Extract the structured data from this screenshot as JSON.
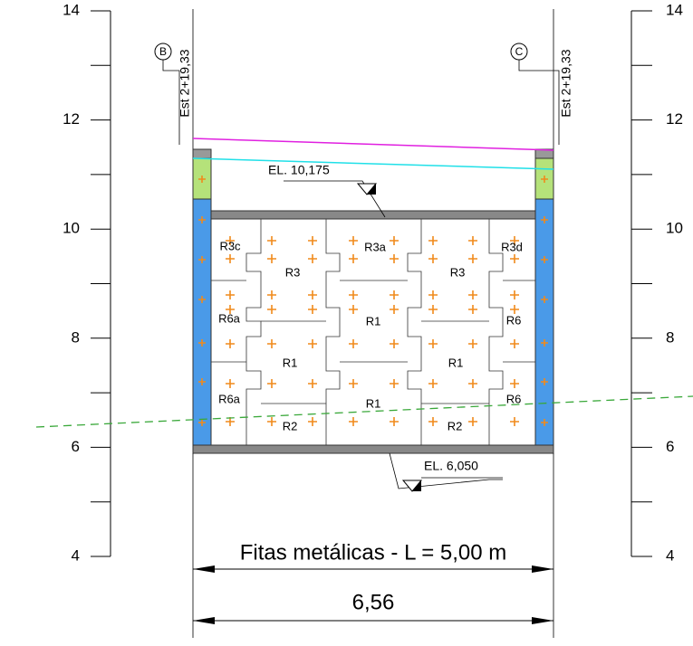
{
  "left_scale": {
    "ticks": [
      14,
      12,
      10,
      8,
      6,
      4
    ]
  },
  "right_scale": {
    "ticks": [
      14,
      12,
      10,
      8,
      6,
      4
    ]
  },
  "markers": [
    {
      "letter": "B",
      "station": "Est 2+19,33"
    },
    {
      "letter": "C",
      "station": "Est 2+19,33"
    }
  ],
  "elevations": [
    "EL. 10,175",
    "EL. 6,050"
  ],
  "blocks": [
    "R3c",
    "R3",
    "R3a",
    "R3",
    "R3d",
    "R6a",
    "R1",
    "R6",
    "R1",
    "R1",
    "R6a",
    "R1",
    "R6",
    "R2",
    "R2"
  ],
  "dimensions": {
    "strip_label": "Fitas metálicas - L = 5,00 m",
    "width": "6,56"
  }
}
